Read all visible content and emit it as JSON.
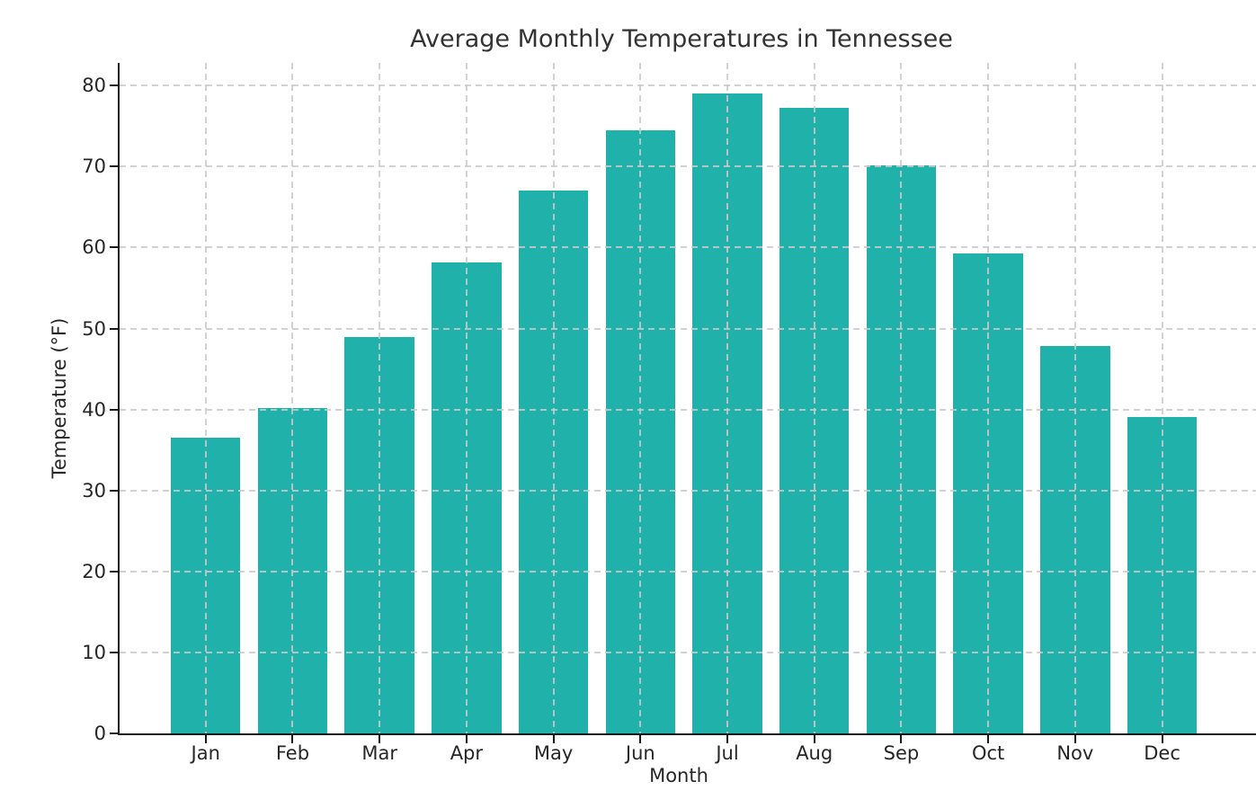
{
  "chart_data": {
    "type": "bar",
    "title": "Average Monthly Temperatures in Tennessee",
    "xlabel": "Month",
    "ylabel": "Temperature (°F)",
    "categories": [
      "Jan",
      "Feb",
      "Mar",
      "Apr",
      "May",
      "Jun",
      "Jul",
      "Aug",
      "Sep",
      "Oct",
      "Nov",
      "Dec"
    ],
    "values": [
      36.5,
      40.2,
      48.9,
      58.2,
      67.0,
      74.5,
      79.0,
      77.2,
      70.1,
      59.3,
      47.8,
      39.1
    ],
    "yticks": [
      0,
      10,
      20,
      30,
      40,
      50,
      60,
      70,
      80
    ],
    "ylim": [
      0,
      82.8
    ],
    "grid": true,
    "grid_style": "dashed",
    "grid_above_bars": true,
    "legend": "none",
    "bar_width_fraction": 0.8,
    "colors": {
      "bar": "#20b2aa",
      "grid": "#cacaca",
      "axis": "#1a1a1a",
      "text": "#262626",
      "title": "#333333",
      "background": "#ffffff"
    }
  }
}
